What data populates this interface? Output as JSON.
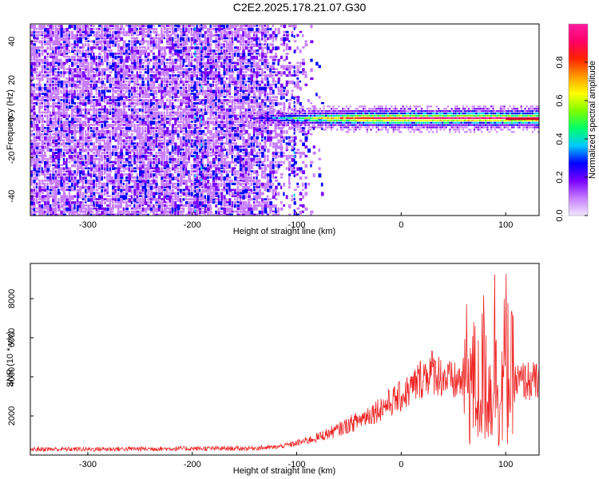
{
  "title": "C2E2.2025.178.21.07.G30",
  "chart_data": [
    {
      "type": "heatmap",
      "xlabel": "Height of straight line (km)",
      "ylabel": "Frequency (Hz)",
      "xlim": [
        -355,
        132
      ],
      "ylim": [
        -50,
        49
      ],
      "xticks": [
        -300,
        -200,
        -100,
        0,
        100
      ],
      "yticks": [
        -40,
        -20,
        0,
        20,
        40
      ],
      "colorbar": {
        "label": "Normalized spectral amplitude",
        "range": [
          0,
          1
        ],
        "ticks": [
          0.0,
          0.2,
          0.4,
          0.6,
          0.8
        ],
        "colormap": [
          "#f0e6ff",
          "#c77dff",
          "#7a00ff",
          "#0000ff",
          "#00c8ff",
          "#00ff6a",
          "#7dff00",
          "#ffff00",
          "#ff9900",
          "#ff2200",
          "#ff0066",
          "#ff1aa0"
        ]
      },
      "features": {
        "noise_region_x": [
          -355,
          -105
        ],
        "signal_band_x": [
          -145,
          132
        ],
        "signal_band_frequency": 0,
        "vertical_streaks_x": [
          -198,
          -192,
          -103
        ]
      }
    },
    {
      "type": "line",
      "xlabel": "Height of straight line (km)",
      "ylabel": "SNR (10 * v/v)",
      "xlim": [
        -355,
        132
      ],
      "ylim": [
        0,
        9800
      ],
      "xticks": [
        -300,
        -200,
        -100,
        0,
        100
      ],
      "yticks": [
        2000,
        4000,
        6000,
        8000
      ],
      "color": "#ee2222",
      "series": [
        {
          "x": [
            -355,
            -300,
            -250,
            -200,
            -150,
            -120,
            -100,
            -80,
            -60,
            -40,
            -20,
            0,
            10,
            20,
            30,
            40,
            50,
            60,
            65,
            70,
            75,
            80,
            85,
            90,
            95,
            100,
            105,
            110,
            120,
            132
          ],
          "values": [
            300,
            300,
            320,
            330,
            340,
            400,
            600,
            900,
            1300,
            1800,
            2400,
            3000,
            3400,
            4000,
            4300,
            4000,
            3700,
            3900,
            4300,
            3600,
            3200,
            4800,
            3000,
            5500,
            2500,
            5000,
            3800,
            3700,
            3800,
            3700
          ]
        }
      ]
    }
  ]
}
